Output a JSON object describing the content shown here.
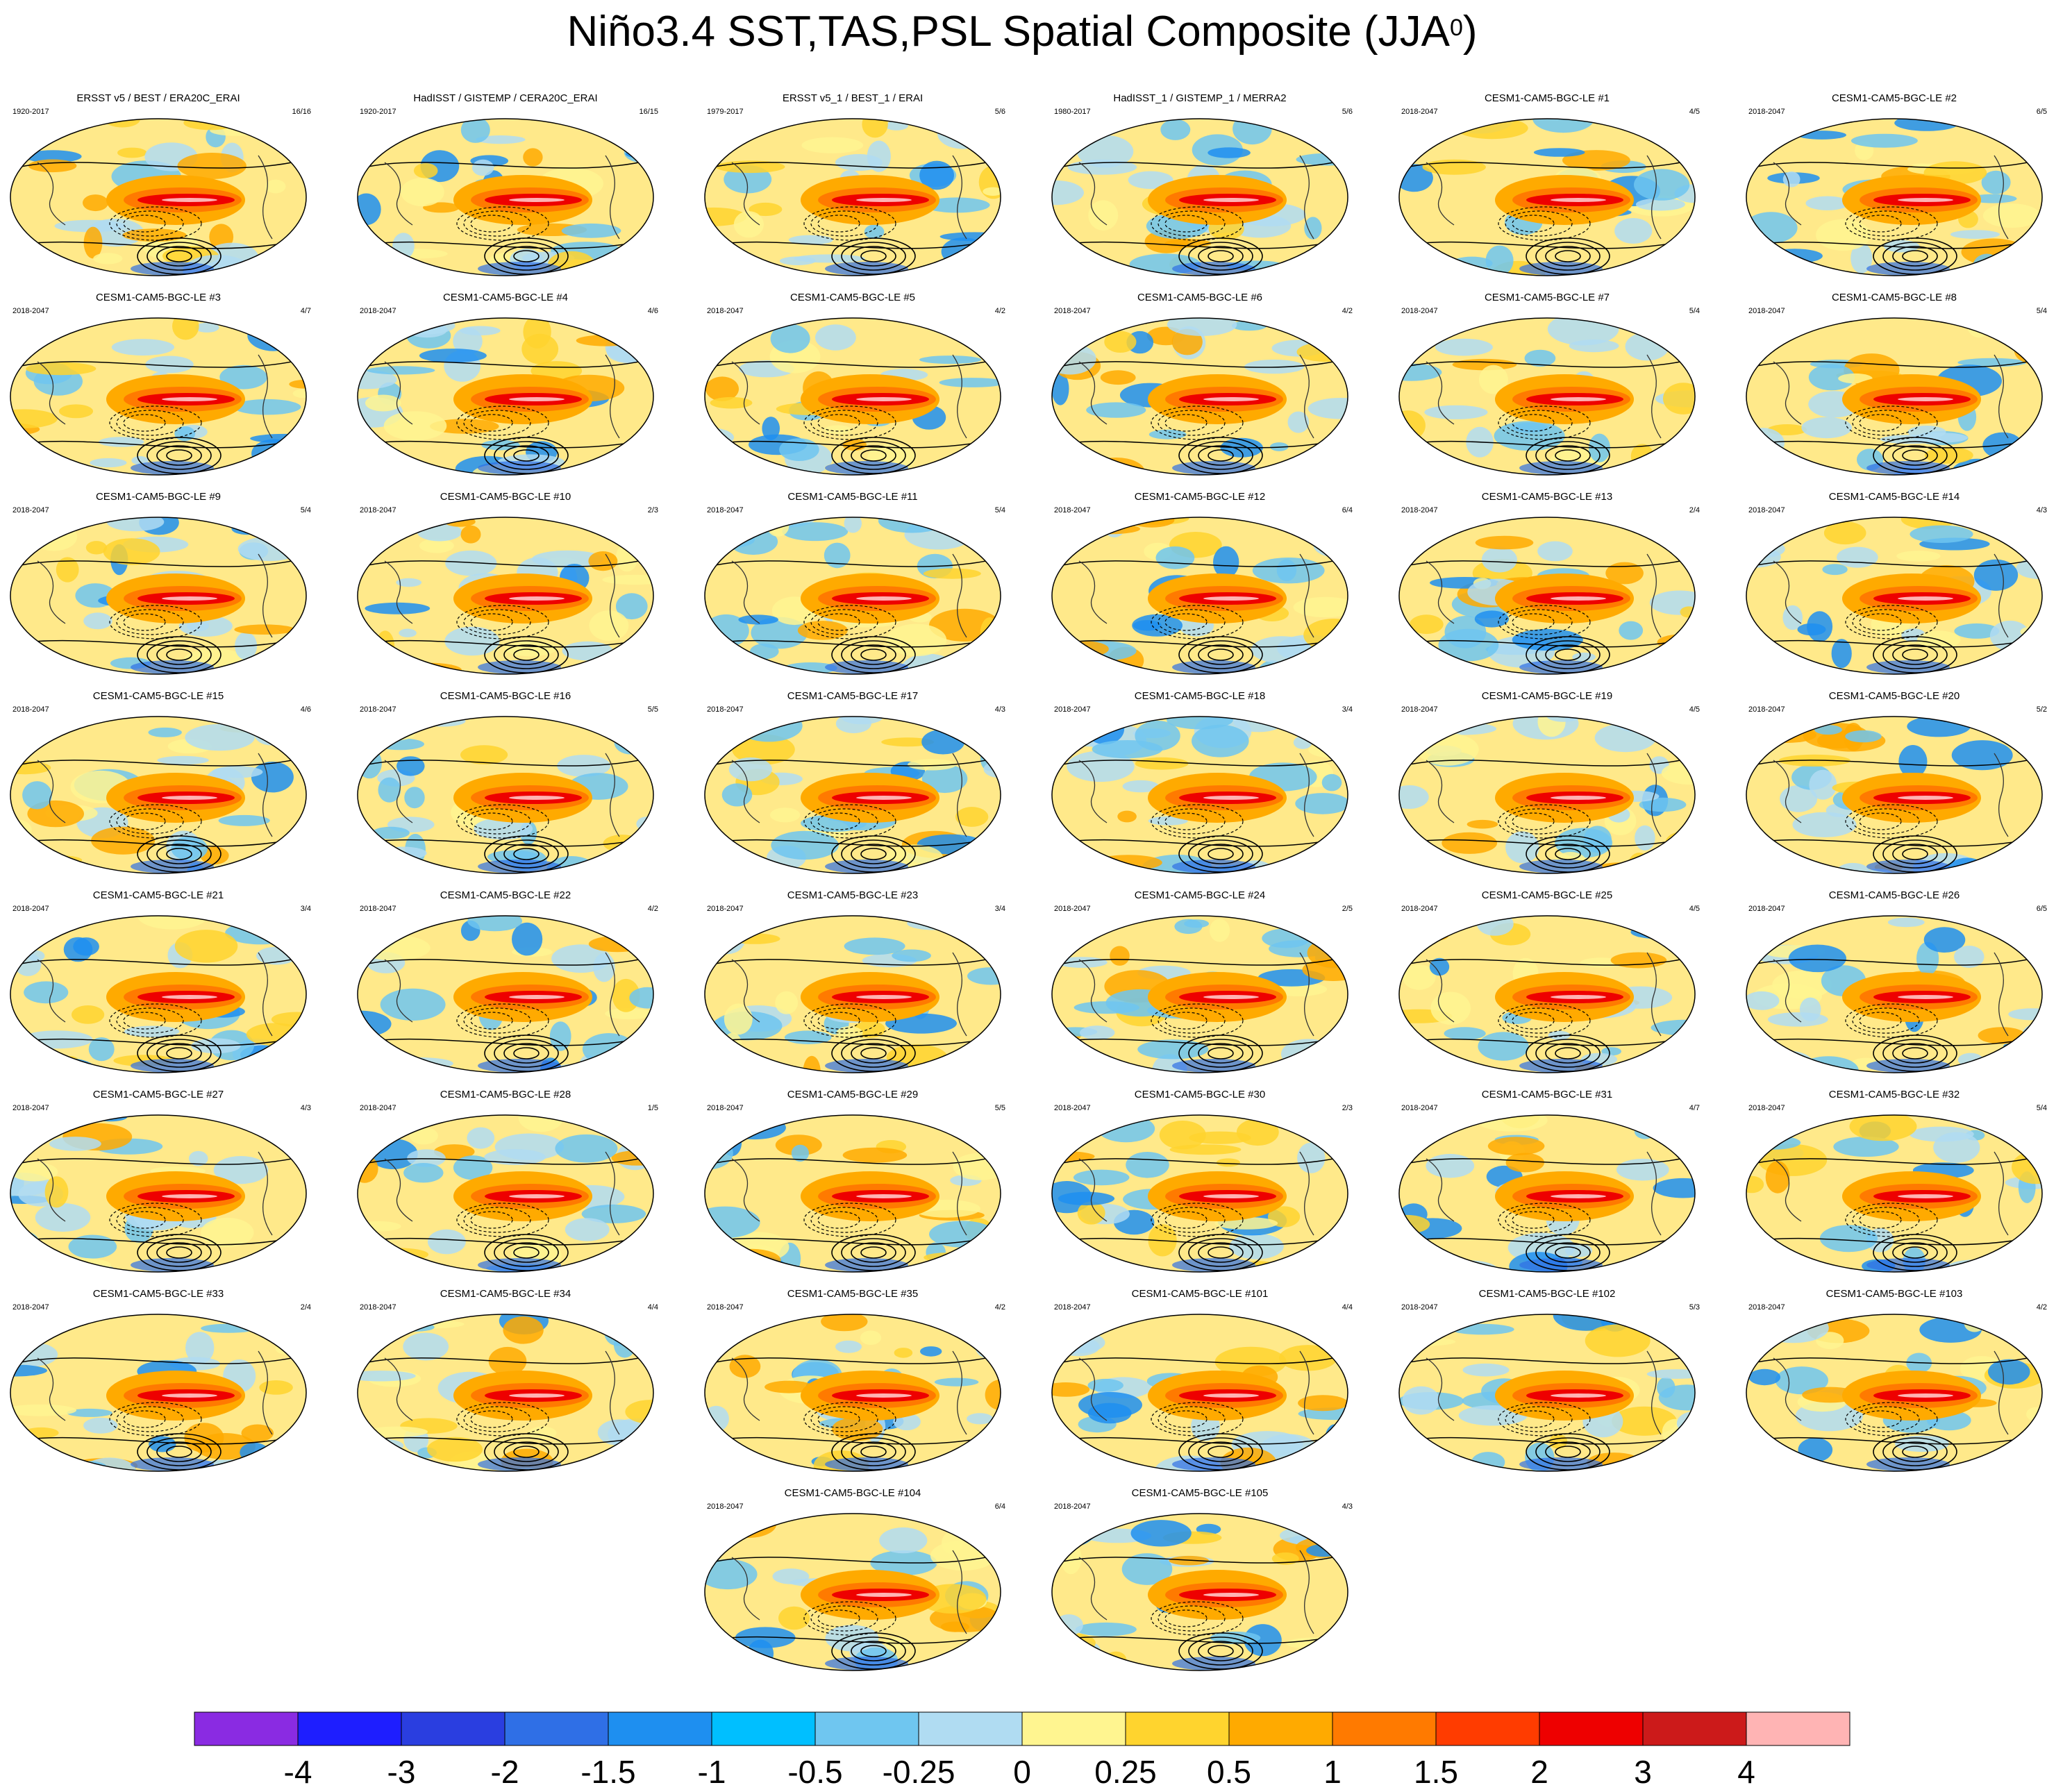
{
  "figure": {
    "title_main": "Niño3.4 SST,TAS,PSL Spatial Composite (JJA",
    "title_sup": "0",
    "title_end": ")"
  },
  "panels": [
    {
      "title": "ERSST v5 / BEST / ERA20C_ERAI",
      "period": "1920-2017",
      "count": "16/16"
    },
    {
      "title": "HadISST / GISTEMP / CERA20C_ERAI",
      "period": "1920-2017",
      "count": "16/15"
    },
    {
      "title": "ERSST v5_1 / BEST_1 / ERAI",
      "period": "1979-2017",
      "count": "5/6"
    },
    {
      "title": "HadISST_1 / GISTEMP_1 / MERRA2",
      "period": "1980-2017",
      "count": "5/6"
    },
    {
      "title": "CESM1-CAM5-BGC-LE #1",
      "period": "2018-2047",
      "count": "4/5"
    },
    {
      "title": "CESM1-CAM5-BGC-LE #2",
      "period": "2018-2047",
      "count": "6/5"
    },
    {
      "title": "CESM1-CAM5-BGC-LE #3",
      "period": "2018-2047",
      "count": "4/7"
    },
    {
      "title": "CESM1-CAM5-BGC-LE #4",
      "period": "2018-2047",
      "count": "4/6"
    },
    {
      "title": "CESM1-CAM5-BGC-LE #5",
      "period": "2018-2047",
      "count": "4/2"
    },
    {
      "title": "CESM1-CAM5-BGC-LE #6",
      "period": "2018-2047",
      "count": "4/2"
    },
    {
      "title": "CESM1-CAM5-BGC-LE #7",
      "period": "2018-2047",
      "count": "5/4"
    },
    {
      "title": "CESM1-CAM5-BGC-LE #8",
      "period": "2018-2047",
      "count": "5/4"
    },
    {
      "title": "CESM1-CAM5-BGC-LE #9",
      "period": "2018-2047",
      "count": "5/4"
    },
    {
      "title": "CESM1-CAM5-BGC-LE #10",
      "period": "2018-2047",
      "count": "2/3"
    },
    {
      "title": "CESM1-CAM5-BGC-LE #11",
      "period": "2018-2047",
      "count": "5/4"
    },
    {
      "title": "CESM1-CAM5-BGC-LE #12",
      "period": "2018-2047",
      "count": "6/4"
    },
    {
      "title": "CESM1-CAM5-BGC-LE #13",
      "period": "2018-2047",
      "count": "2/4"
    },
    {
      "title": "CESM1-CAM5-BGC-LE #14",
      "period": "2018-2047",
      "count": "4/3"
    },
    {
      "title": "CESM1-CAM5-BGC-LE #15",
      "period": "2018-2047",
      "count": "4/6"
    },
    {
      "title": "CESM1-CAM5-BGC-LE #16",
      "period": "2018-2047",
      "count": "5/5"
    },
    {
      "title": "CESM1-CAM5-BGC-LE #17",
      "period": "2018-2047",
      "count": "4/3"
    },
    {
      "title": "CESM1-CAM5-BGC-LE #18",
      "period": "2018-2047",
      "count": "3/4"
    },
    {
      "title": "CESM1-CAM5-BGC-LE #19",
      "period": "2018-2047",
      "count": "4/5"
    },
    {
      "title": "CESM1-CAM5-BGC-LE #20",
      "period": "2018-2047",
      "count": "5/2"
    },
    {
      "title": "CESM1-CAM5-BGC-LE #21",
      "period": "2018-2047",
      "count": "3/4"
    },
    {
      "title": "CESM1-CAM5-BGC-LE #22",
      "period": "2018-2047",
      "count": "4/2"
    },
    {
      "title": "CESM1-CAM5-BGC-LE #23",
      "period": "2018-2047",
      "count": "3/4"
    },
    {
      "title": "CESM1-CAM5-BGC-LE #24",
      "period": "2018-2047",
      "count": "2/5"
    },
    {
      "title": "CESM1-CAM5-BGC-LE #25",
      "period": "2018-2047",
      "count": "4/5"
    },
    {
      "title": "CESM1-CAM5-BGC-LE #26",
      "period": "2018-2047",
      "count": "6/5"
    },
    {
      "title": "CESM1-CAM5-BGC-LE #27",
      "period": "2018-2047",
      "count": "4/3"
    },
    {
      "title": "CESM1-CAM5-BGC-LE #28",
      "period": "2018-2047",
      "count": "1/5"
    },
    {
      "title": "CESM1-CAM5-BGC-LE #29",
      "period": "2018-2047",
      "count": "5/5"
    },
    {
      "title": "CESM1-CAM5-BGC-LE #30",
      "period": "2018-2047",
      "count": "2/3"
    },
    {
      "title": "CESM1-CAM5-BGC-LE #31",
      "period": "2018-2047",
      "count": "4/7"
    },
    {
      "title": "CESM1-CAM5-BGC-LE #32",
      "period": "2018-2047",
      "count": "5/4"
    },
    {
      "title": "CESM1-CAM5-BGC-LE #33",
      "period": "2018-2047",
      "count": "2/4"
    },
    {
      "title": "CESM1-CAM5-BGC-LE #34",
      "period": "2018-2047",
      "count": "4/4"
    },
    {
      "title": "CESM1-CAM5-BGC-LE #35",
      "period": "2018-2047",
      "count": "4/2"
    },
    {
      "title": "CESM1-CAM5-BGC-LE #101",
      "period": "2018-2047",
      "count": "4/4"
    },
    {
      "title": "CESM1-CAM5-BGC-LE #102",
      "period": "2018-2047",
      "count": "5/3"
    },
    {
      "title": "CESM1-CAM5-BGC-LE #103",
      "period": "2018-2047",
      "count": "4/2"
    },
    {
      "title": "CESM1-CAM5-BGC-LE #104",
      "period": "2018-2047",
      "count": "6/4"
    },
    {
      "title": "CESM1-CAM5-BGC-LE #105",
      "period": "2018-2047",
      "count": "4/3"
    }
  ],
  "colorbar": {
    "labels": [
      "-4",
      "-3",
      "-2",
      "-1.5",
      "-1",
      "-0.5",
      "-0.25",
      "0",
      "0.25",
      "0.5",
      "1",
      "1.5",
      "2",
      "3",
      "4"
    ],
    "colors": [
      "#8a2be2",
      "#1e1eff",
      "#2a3ee0",
      "#2f6fe6",
      "#1e8ff0",
      "#00bfff",
      "#6fc6f0",
      "#b0dcf2",
      "#fff590",
      "#ffd42e",
      "#ffaa00",
      "#ff7a00",
      "#ff3c00",
      "#ee0000",
      "#cc1a1a",
      "#ffb4b4"
    ]
  }
}
